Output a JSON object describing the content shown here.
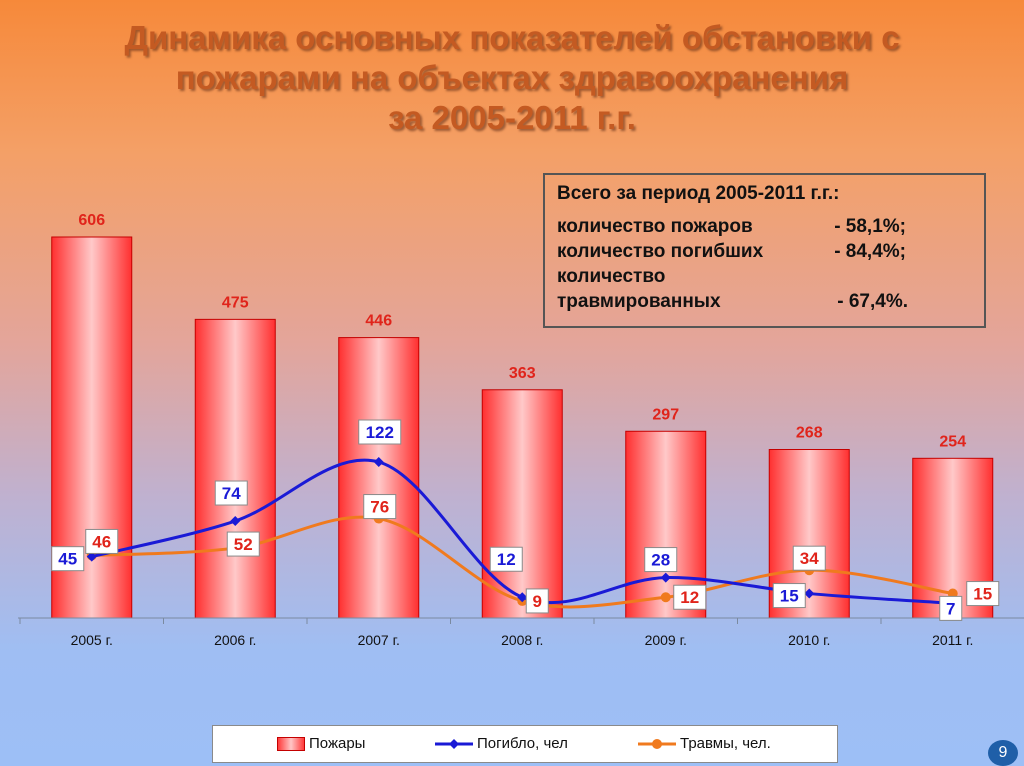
{
  "title": {
    "line1": "Динамика основных показателей обстановки с",
    "line2": "пожарами на объектах здравоохранения",
    "line3": "за 2005-2011 г.г."
  },
  "summary": {
    "heading": "Всего за период 2005-2011 г.г.:",
    "rows": [
      {
        "label": "количество пожаров",
        "value": "- 58,1%;"
      },
      {
        "label": "количество погибших",
        "value": "- 84,4%;"
      },
      {
        "label": "количество",
        "value": ""
      },
      {
        "label": "травмированных",
        "value": "- 67,4%."
      }
    ]
  },
  "chart_data": {
    "type": "bar",
    "categories": [
      "2005 г.",
      "2006 г.",
      "2007 г.",
      "2008 г.",
      "2009 г.",
      "2010 г.",
      "2011 г."
    ],
    "series": [
      {
        "name": "Пожары",
        "type": "bar",
        "values": [
          606,
          475,
          446,
          363,
          297,
          268,
          254
        ],
        "color": "#ff3a3a"
      },
      {
        "name": "Погибло, чел",
        "type": "line",
        "values": [
          45,
          74,
          122,
          12,
          28,
          15,
          7
        ],
        "color": "#1a1ad6"
      },
      {
        "name": "Травмы, чел.",
        "type": "line",
        "values": [
          46,
          52,
          76,
          9,
          12,
          34,
          15
        ],
        "color": "#f07a1e"
      }
    ],
    "title": "",
    "xlabel": "",
    "ylabel": "",
    "grid": false,
    "legend_position": "bottom"
  },
  "legend": {
    "fires": "Пожары",
    "deaths": "Погибло, чел",
    "injuries": "Травмы, чел."
  },
  "page_number": "9"
}
